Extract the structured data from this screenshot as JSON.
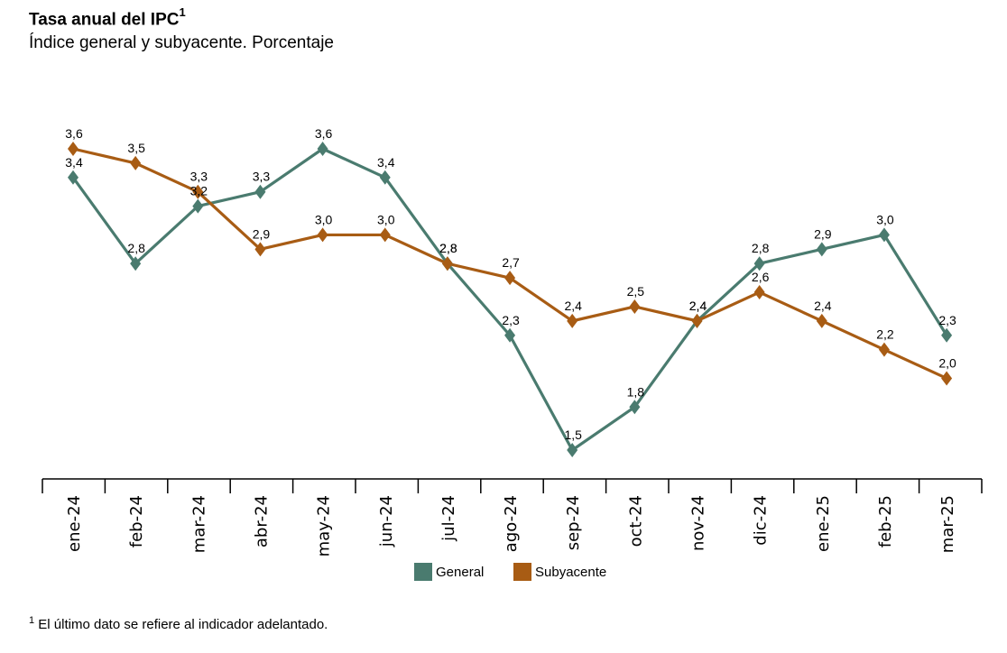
{
  "title": "Tasa anual del IPC",
  "title_sup": "1",
  "subtitle": "Índice general y subyacente. Porcentaje",
  "footnote_sup": "1",
  "footnote": "El último dato se refiere al indicador adelantado.",
  "chart_data": {
    "type": "line",
    "categories": [
      "ene-24",
      "feb-24",
      "mar-24",
      "abr-24",
      "may-24",
      "jun-24",
      "jul-24",
      "ago-24",
      "sep-24",
      "oct-24",
      "nov-24",
      "dic-24",
      "ene-25",
      "feb-25",
      "mar-25"
    ],
    "series": [
      {
        "name": "General",
        "color": "#4a7b6f",
        "values": [
          3.4,
          2.8,
          3.2,
          3.3,
          3.6,
          3.4,
          2.8,
          2.3,
          1.5,
          1.8,
          2.4,
          2.8,
          2.9,
          3.0,
          2.3
        ],
        "labels": [
          "3,4",
          "2,8",
          "3,2",
          "3,3",
          "3,6",
          "3,4",
          "2,8",
          "2,3",
          "1,5",
          "1,8",
          "2,4",
          "2,8",
          "2,9",
          "3,0",
          "2,3"
        ]
      },
      {
        "name": "Subyacente",
        "color": "#a85c14",
        "values": [
          3.6,
          3.5,
          3.3,
          2.9,
          3.0,
          3.0,
          2.8,
          2.7,
          2.4,
          2.5,
          2.4,
          2.6,
          2.4,
          2.2,
          2.0
        ],
        "labels": [
          "3,6",
          "3,5",
          "3,3",
          "2,9",
          "3,0",
          "3,0",
          "2,8",
          "2,7",
          "2,4",
          "2,5",
          "2,4",
          "2,6",
          "2,4",
          "2,2",
          "2,0"
        ]
      }
    ],
    "ylim": [
      1.5,
      3.6
    ],
    "grid": false,
    "legend": "bottom"
  }
}
